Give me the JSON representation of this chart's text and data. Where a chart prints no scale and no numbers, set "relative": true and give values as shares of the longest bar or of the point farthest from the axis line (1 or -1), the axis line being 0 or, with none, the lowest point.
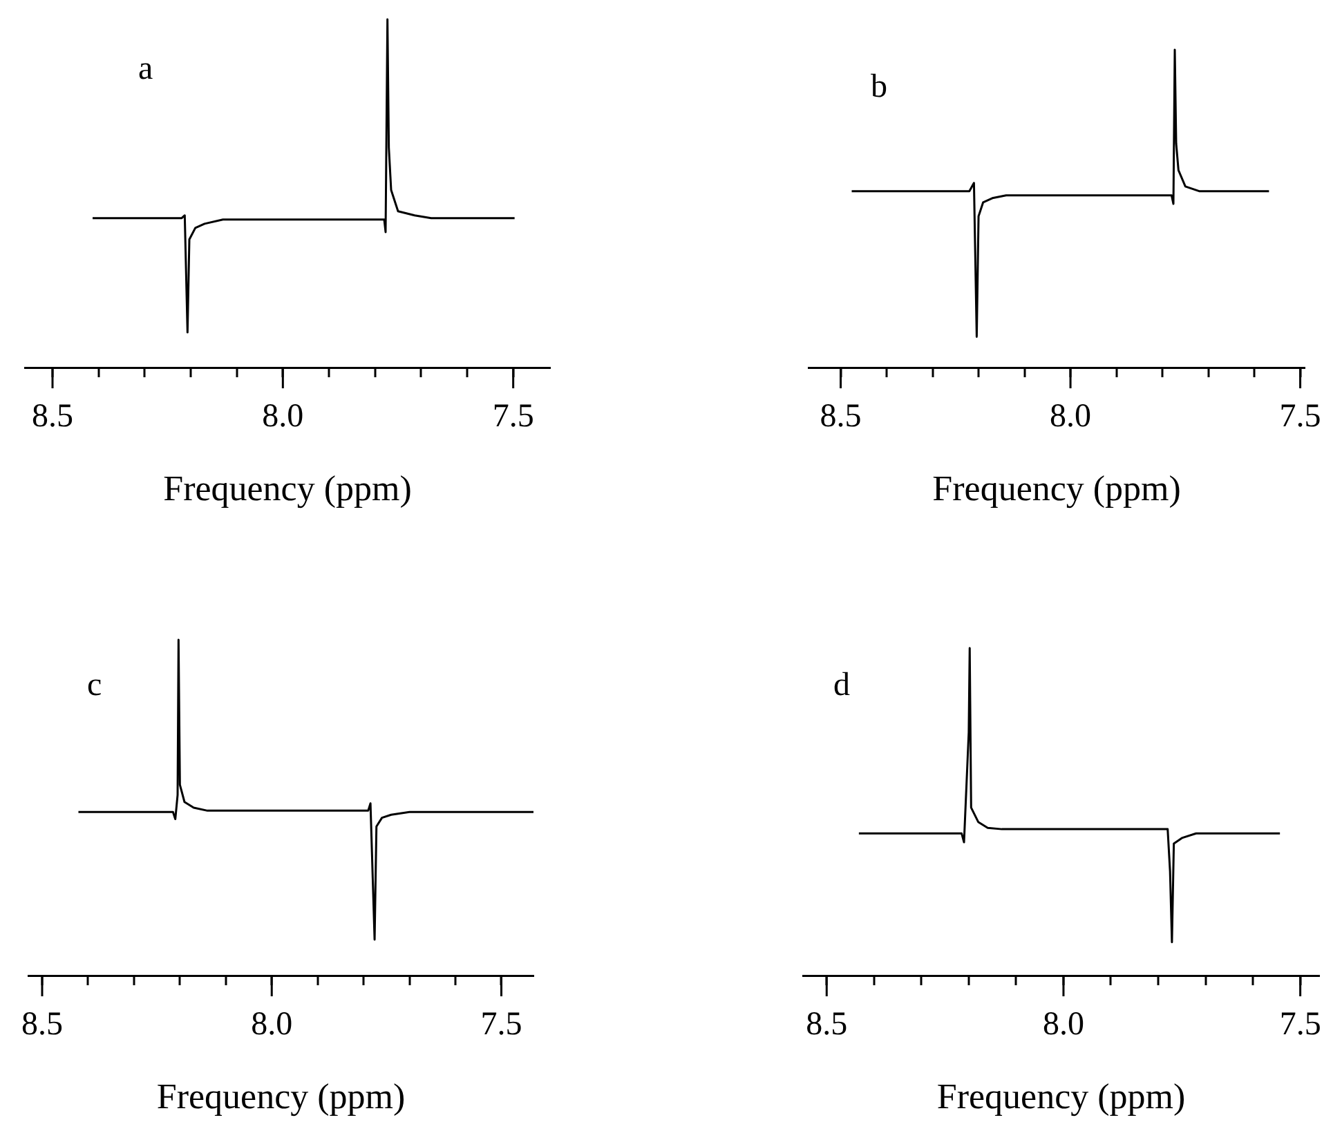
{
  "chart_data": [
    {
      "type": "line",
      "title": "a",
      "xlabel": "Frequency (ppm)",
      "relative": true,
      "xlim": [
        8.56,
        7.42
      ],
      "xticks": [
        {
          "value": 8.5,
          "label": "8.5"
        },
        {
          "value": 8.4,
          "label": null
        },
        {
          "value": 8.3,
          "label": null
        },
        {
          "value": 8.2,
          "label": null
        },
        {
          "value": 8.1,
          "label": null
        },
        {
          "value": 8,
          "label": "8.0"
        },
        {
          "value": 7.9,
          "label": null
        },
        {
          "value": 7.8,
          "label": null
        },
        {
          "value": 7.7,
          "label": null
        },
        {
          "value": 7.6,
          "label": null
        },
        {
          "value": 7.5,
          "label": "7.5"
        }
      ],
      "tick_labels": "x",
      "grid": false,
      "legend": false,
      "marker": "none",
      "line_style": "solid",
      "series": [
        {
          "color": "#000000",
          "x": [
            8.413,
            8.22,
            8.213,
            8.207,
            8.203,
            8.19,
            8.17,
            8.13,
            7.78,
            7.777,
            7.773,
            7.77,
            7.765,
            7.75,
            7.714,
            7.678,
            7.497
          ],
          "values": [
            0.429,
            0.429,
            0.437,
            0.101,
            0.368,
            0.401,
            0.413,
            0.425,
            0.425,
            0.389,
            1,
            0.632,
            0.51,
            0.449,
            0.437,
            0.429,
            0.429
          ]
        }
      ]
    },
    {
      "type": "line",
      "title": "b",
      "xlabel": "Frequency (ppm)",
      "relative": true,
      "xlim": [
        8.57,
        7.49
      ],
      "xticks": [
        {
          "value": 8.5,
          "label": "8.5"
        },
        {
          "value": 8.4,
          "label": null
        },
        {
          "value": 8.3,
          "label": null
        },
        {
          "value": 8.2,
          "label": null
        },
        {
          "value": 8.1,
          "label": null
        },
        {
          "value": 8,
          "label": "8.0"
        },
        {
          "value": 7.9,
          "label": null
        },
        {
          "value": 7.8,
          "label": null
        },
        {
          "value": 7.7,
          "label": null
        },
        {
          "value": 7.6,
          "label": null
        },
        {
          "value": 7.5,
          "label": "7.5"
        }
      ],
      "tick_labels": "x",
      "grid": false,
      "legend": false,
      "marker": "none",
      "line_style": "solid",
      "series": [
        {
          "color": "#000000",
          "x": [
            8.476,
            8.22,
            8.21,
            8.204,
            8.2,
            8.19,
            8.17,
            8.14,
            7.78,
            7.776,
            7.773,
            7.77,
            7.765,
            7.75,
            7.72,
            7.568
          ],
          "values": [
            0.555,
            0.555,
            0.581,
            0.097,
            0.476,
            0.52,
            0.533,
            0.542,
            0.542,
            0.515,
            1,
            0.705,
            0.621,
            0.57,
            0.555,
            0.555
          ]
        }
      ]
    },
    {
      "type": "line",
      "title": "c",
      "xlabel": "Frequency (ppm)",
      "relative": true,
      "xlim": [
        8.53,
        7.43
      ],
      "xticks": [
        {
          "value": 8.5,
          "label": "8.5"
        },
        {
          "value": 8.4,
          "label": null
        },
        {
          "value": 8.3,
          "label": null
        },
        {
          "value": 8.2,
          "label": null
        },
        {
          "value": 8.1,
          "label": null
        },
        {
          "value": 8,
          "label": "8.0"
        },
        {
          "value": 7.9,
          "label": null
        },
        {
          "value": 7.8,
          "label": null
        },
        {
          "value": 7.7,
          "label": null
        },
        {
          "value": 7.6,
          "label": null
        },
        {
          "value": 7.5,
          "label": "7.5"
        }
      ],
      "tick_labels": "x",
      "grid": false,
      "legend": false,
      "marker": "none",
      "line_style": "solid",
      "series": [
        {
          "color": "#000000",
          "x": [
            8.421,
            8.215,
            8.21,
            8.205,
            8.203,
            8.2,
            8.19,
            8.17,
            8.14,
            7.91,
            7.79,
            7.785,
            7.776,
            7.772,
            7.76,
            7.74,
            7.7,
            7.43
          ],
          "values": [
            0.487,
            0.487,
            0.466,
            0.538,
            1,
            0.568,
            0.517,
            0.5,
            0.491,
            0.491,
            0.491,
            0.513,
            0.107,
            0.444,
            0.47,
            0.479,
            0.487,
            0.487
          ]
        }
      ]
    },
    {
      "type": "line",
      "title": "d",
      "xlabel": "Frequency (ppm)",
      "relative": true,
      "xlim": [
        8.55,
        7.46
      ],
      "xticks": [
        {
          "value": 8.5,
          "label": "8.5"
        },
        {
          "value": 8.4,
          "label": null
        },
        {
          "value": 8.3,
          "label": null
        },
        {
          "value": 8.2,
          "label": null
        },
        {
          "value": 8.1,
          "label": null
        },
        {
          "value": 8,
          "label": "8.0"
        },
        {
          "value": 7.9,
          "label": null
        },
        {
          "value": 7.8,
          "label": null
        },
        {
          "value": 7.7,
          "label": null
        },
        {
          "value": 7.6,
          "label": null
        },
        {
          "value": 7.5,
          "label": "7.5"
        }
      ],
      "tick_labels": "x",
      "grid": false,
      "legend": false,
      "marker": "none",
      "line_style": "solid",
      "series": [
        {
          "color": "#000000",
          "x": [
            8.432,
            8.215,
            8.21,
            8.2,
            8.198,
            8.195,
            8.18,
            8.16,
            8.13,
            7.78,
            7.775,
            7.771,
            7.767,
            7.75,
            7.72,
            7.543
          ],
          "values": [
            0.434,
            0.434,
            0.407,
            0.743,
            1,
            0.513,
            0.469,
            0.451,
            0.447,
            0.447,
            0.319,
            0.102,
            0.403,
            0.42,
            0.434,
            0.434
          ]
        }
      ]
    }
  ]
}
